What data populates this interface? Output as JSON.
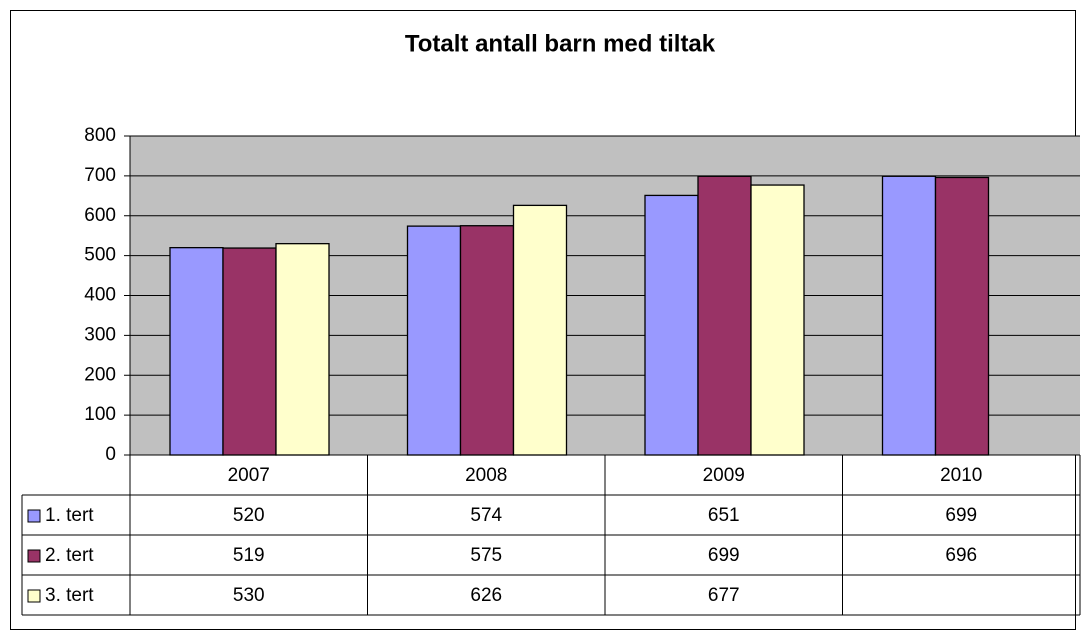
{
  "chart_data": {
    "type": "bar",
    "title": "Totalt antall barn med tiltak",
    "categories": [
      "2007",
      "2008",
      "2009",
      "2010"
    ],
    "series": [
      {
        "name": "1. tert",
        "color": "#9999ff",
        "values": [
          520,
          574,
          651,
          699
        ]
      },
      {
        "name": "2. tert",
        "color": "#993366",
        "values": [
          519,
          575,
          699,
          696
        ]
      },
      {
        "name": "3. tert",
        "color": "#ffffcc",
        "values": [
          530,
          626,
          677,
          null
        ]
      }
    ],
    "ylim": [
      0,
      800
    ],
    "yticks": [
      0,
      100,
      200,
      300,
      400,
      500,
      600,
      700,
      800
    ],
    "grid": true
  }
}
